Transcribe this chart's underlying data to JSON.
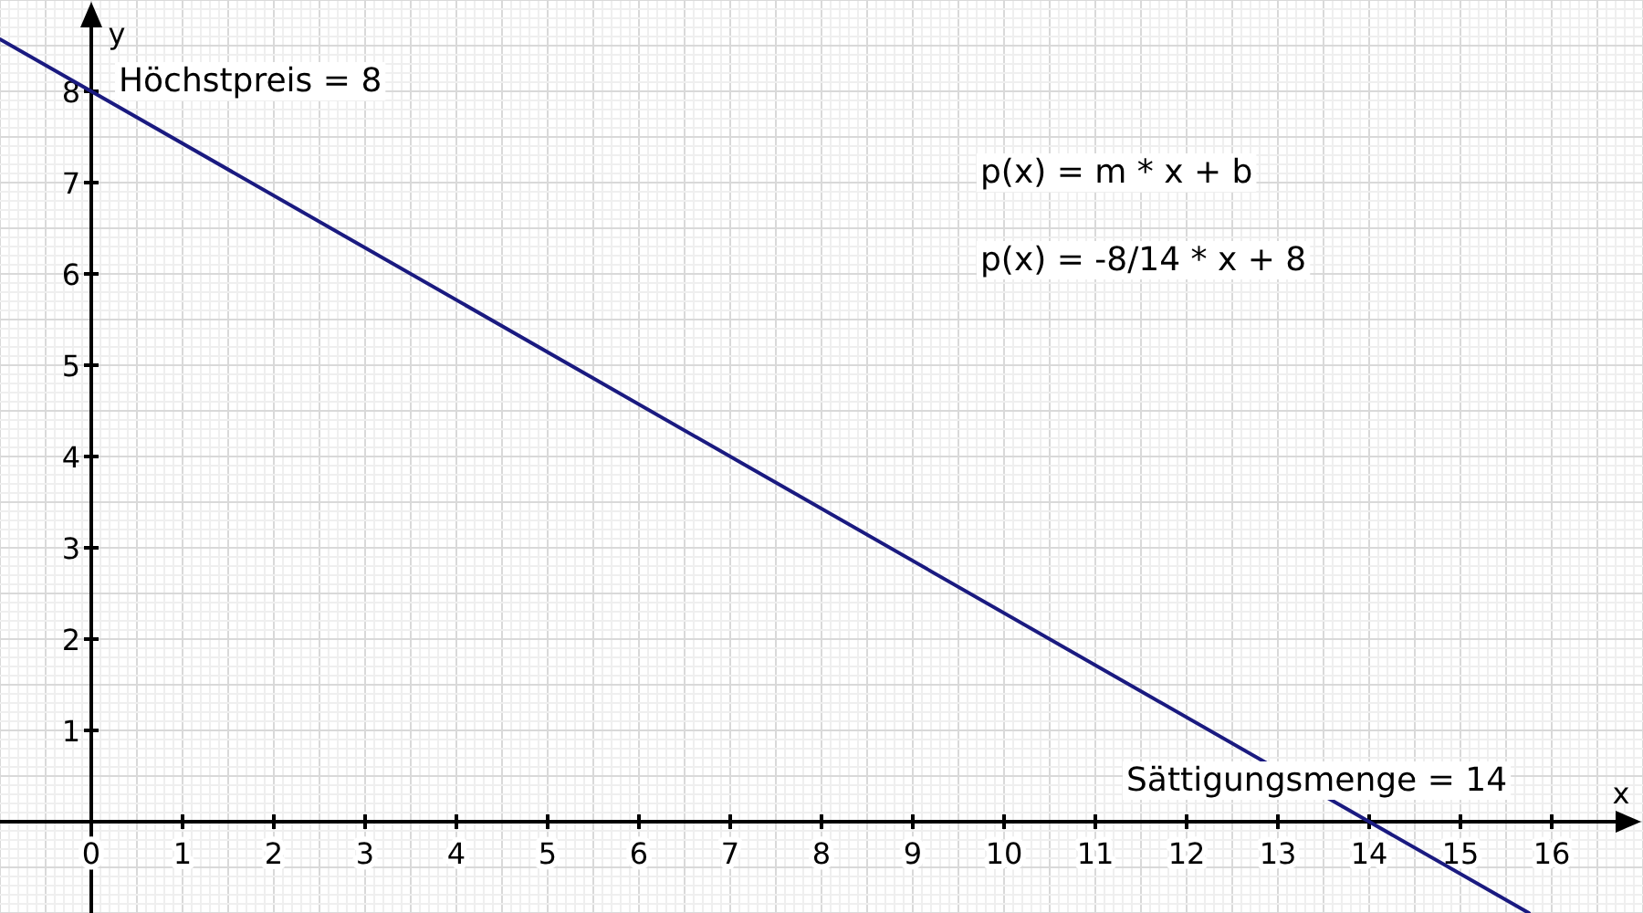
{
  "chart_data": {
    "type": "line",
    "xlabel": "x",
    "ylabel": "y",
    "annotations": [
      {
        "text": "Höchstpreis = 8",
        "x": 0,
        "y": 8
      },
      {
        "text": "Sättigungsmenge = 14",
        "x": 14,
        "y": 0
      },
      "p(x) = m * x + b",
      "p(x) = -8/14 * x + 8"
    ],
    "x": [
      -1,
      0,
      14,
      15.75
    ],
    "series": [
      {
        "color": "#1a1a80",
        "values": [
          8.57,
          8,
          0,
          -1
        ]
      }
    ],
    "xlim": [
      -1,
      17
    ],
    "ylim": [
      -1,
      9
    ],
    "xticks": [
      0,
      1,
      2,
      3,
      4,
      5,
      6,
      7,
      8,
      9,
      10,
      11,
      12,
      13,
      14,
      15,
      16
    ],
    "yticks": [
      1,
      2,
      3,
      4,
      5,
      6,
      7,
      8
    ],
    "grid": true,
    "line_style": "solid"
  }
}
